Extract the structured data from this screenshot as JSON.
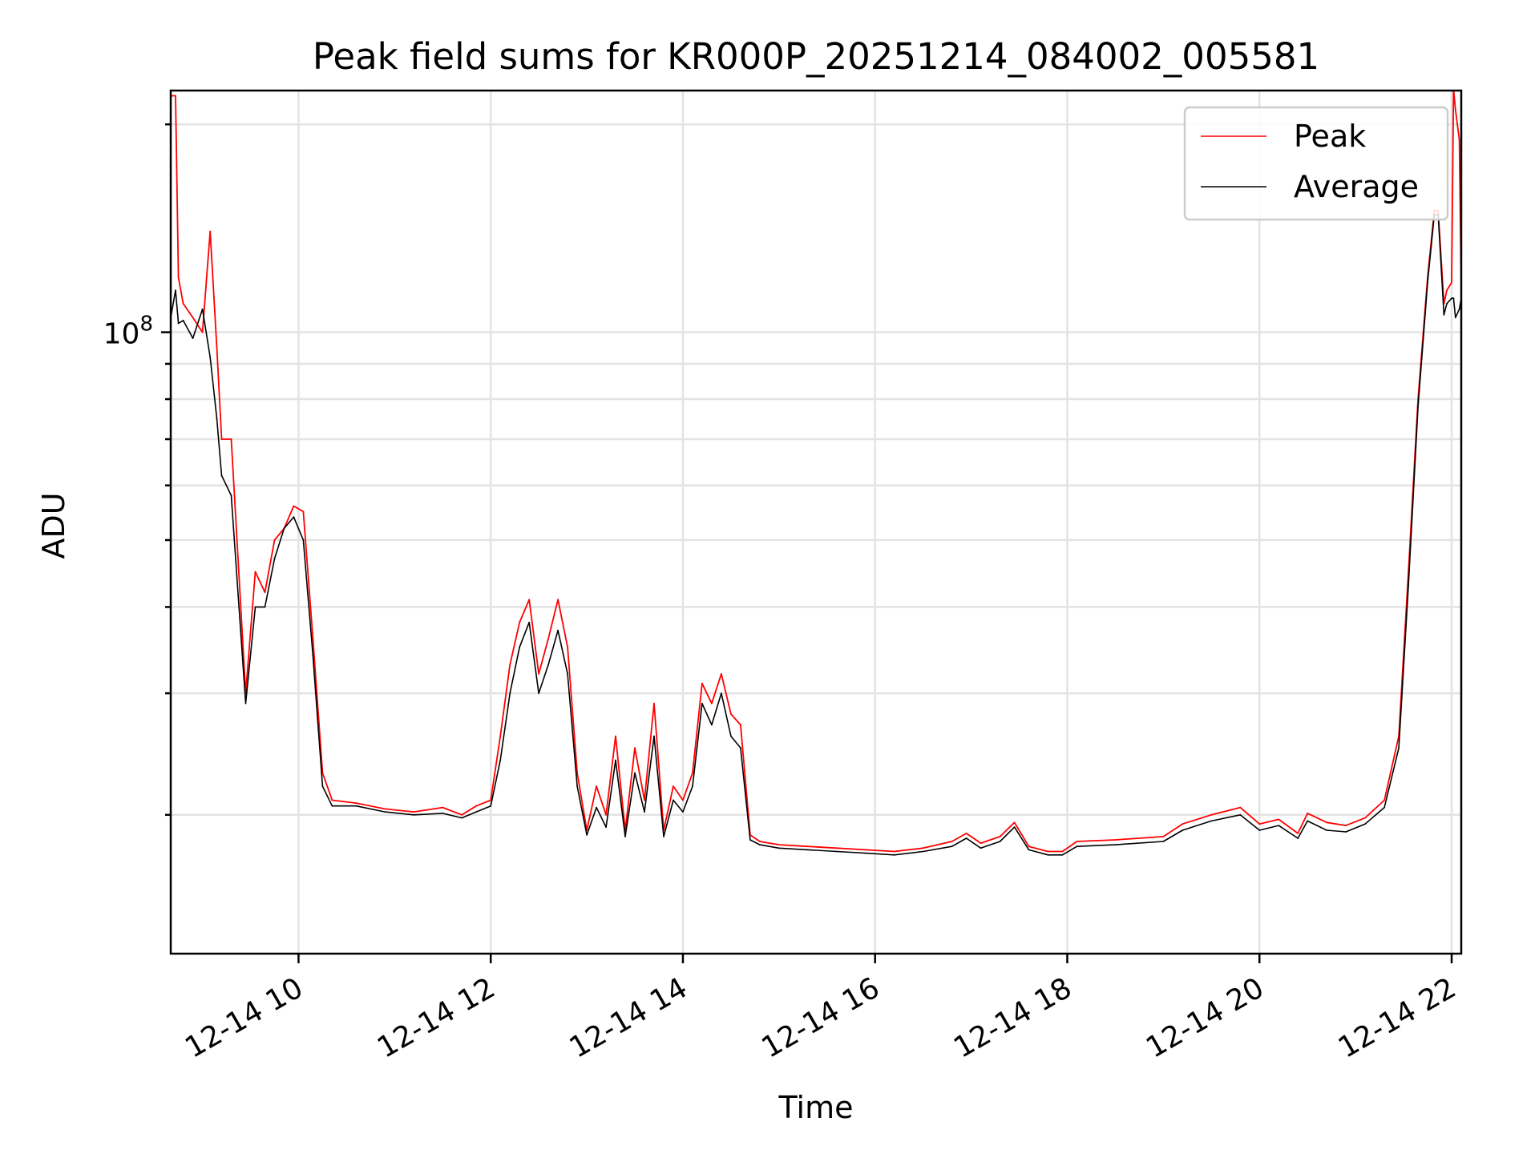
{
  "chart_data": {
    "type": "line",
    "title": "Peak field sums for KR000P_20251214_084002_005581",
    "xlabel": "Time",
    "ylabel": "ADU",
    "yscale": "log",
    "grid": true,
    "legend_position": "top-right",
    "x_unit": "hours since 2025-12-14 00:00",
    "xlim": [
      8.67,
      22.1
    ],
    "ylim_log10": [
      7.1,
      8.35
    ],
    "x_ticks": [
      {
        "value": 10,
        "label": "12-14 10"
      },
      {
        "value": 12,
        "label": "12-14 12"
      },
      {
        "value": 14,
        "label": "12-14 14"
      },
      {
        "value": 16,
        "label": "12-14 16"
      },
      {
        "value": 18,
        "label": "12-14 18"
      },
      {
        "value": 20,
        "label": "12-14 20"
      },
      {
        "value": 22,
        "label": "12-14 22"
      }
    ],
    "y_major_ticks": [
      {
        "value": 100000000,
        "base": "10",
        "exponent": "8"
      }
    ],
    "y_minor_ticks": [
      20000000,
      30000000,
      40000000,
      50000000,
      60000000,
      70000000,
      80000000,
      90000000,
      200000000
    ],
    "series": [
      {
        "name": "Peak",
        "color": "#ff0000",
        "x": [
          8.67,
          8.72,
          8.75,
          8.8,
          8.9,
          9.0,
          9.08,
          9.15,
          9.2,
          9.3,
          9.45,
          9.55,
          9.65,
          9.75,
          9.85,
          9.95,
          10.05,
          10.15,
          10.25,
          10.35,
          10.6,
          10.9,
          11.2,
          11.5,
          11.7,
          11.85,
          12.0,
          12.1,
          12.2,
          12.3,
          12.4,
          12.5,
          12.6,
          12.7,
          12.8,
          12.9,
          13.0,
          13.1,
          13.2,
          13.3,
          13.4,
          13.5,
          13.6,
          13.7,
          13.8,
          13.9,
          14.0,
          14.1,
          14.2,
          14.3,
          14.4,
          14.5,
          14.6,
          14.7,
          14.8,
          15.0,
          15.3,
          15.6,
          15.9,
          16.2,
          16.5,
          16.8,
          16.95,
          17.1,
          17.3,
          17.45,
          17.6,
          17.8,
          17.95,
          18.1,
          18.5,
          19.0,
          19.2,
          19.5,
          19.8,
          20.0,
          20.2,
          20.4,
          20.5,
          20.7,
          20.9,
          21.1,
          21.3,
          21.45,
          21.55,
          21.65,
          21.75,
          21.82,
          21.86,
          21.92,
          21.95,
          22.0,
          22.02,
          22.04,
          22.08,
          22.1
        ],
        "values": [
          220000000,
          220000000,
          120000000,
          110000000,
          105000000,
          100000000,
          140000000,
          95000000,
          70000000,
          70000000,
          30000000,
          45000000,
          42000000,
          50000000,
          52000000,
          56000000,
          55000000,
          36000000,
          23000000,
          21000000,
          20800000,
          20400000,
          20200000,
          20500000,
          20000000,
          20600000,
          21000000,
          26000000,
          33000000,
          38000000,
          41000000,
          32000000,
          36000000,
          41000000,
          35000000,
          23000000,
          19000000,
          22000000,
          20000000,
          26000000,
          19000000,
          25000000,
          21000000,
          29000000,
          19000000,
          22000000,
          21000000,
          23000000,
          31000000,
          29000000,
          32000000,
          28000000,
          27000000,
          18700000,
          18300000,
          18100000,
          18000000,
          17900000,
          17800000,
          17700000,
          17900000,
          18300000,
          18800000,
          18200000,
          18600000,
          19500000,
          18000000,
          17700000,
          17700000,
          18300000,
          18400000,
          18600000,
          19400000,
          20000000,
          20500000,
          19400000,
          19700000,
          18800000,
          20100000,
          19500000,
          19300000,
          19800000,
          21000000,
          26000000,
          45000000,
          80000000,
          120000000,
          150000000,
          150000000,
          110000000,
          115000000,
          118000000,
          225000000,
          210000000,
          190000000,
          115000000
        ]
      },
      {
        "name": "Average",
        "color": "#000000",
        "x": [
          8.67,
          8.72,
          8.75,
          8.8,
          8.9,
          9.0,
          9.08,
          9.15,
          9.2,
          9.3,
          9.45,
          9.55,
          9.65,
          9.75,
          9.85,
          9.95,
          10.05,
          10.15,
          10.25,
          10.35,
          10.6,
          10.9,
          11.2,
          11.5,
          11.7,
          11.85,
          12.0,
          12.1,
          12.2,
          12.3,
          12.4,
          12.5,
          12.6,
          12.7,
          12.8,
          12.9,
          13.0,
          13.1,
          13.2,
          13.3,
          13.4,
          13.5,
          13.6,
          13.7,
          13.8,
          13.9,
          14.0,
          14.1,
          14.2,
          14.3,
          14.4,
          14.5,
          14.6,
          14.7,
          14.8,
          15.0,
          15.3,
          15.6,
          15.9,
          16.2,
          16.5,
          16.8,
          16.95,
          17.1,
          17.3,
          17.45,
          17.6,
          17.8,
          17.95,
          18.1,
          18.5,
          19.0,
          19.2,
          19.5,
          19.8,
          20.0,
          20.2,
          20.4,
          20.5,
          20.7,
          20.9,
          21.1,
          21.3,
          21.45,
          21.55,
          21.65,
          21.75,
          21.82,
          21.86,
          21.92,
          21.95,
          22.0,
          22.02,
          22.04,
          22.08,
          22.1
        ],
        "values": [
          105000000,
          115000000,
          103000000,
          104000000,
          98000000,
          108000000,
          92000000,
          75000000,
          62000000,
          58000000,
          29000000,
          40000000,
          40000000,
          47000000,
          52000000,
          54000000,
          50000000,
          34000000,
          22000000,
          20600000,
          20600000,
          20200000,
          20000000,
          20100000,
          19800000,
          20200000,
          20600000,
          24000000,
          30000000,
          35000000,
          38000000,
          30000000,
          33000000,
          37000000,
          32000000,
          22000000,
          18700000,
          20500000,
          19200000,
          24000000,
          18600000,
          23000000,
          20200000,
          26000000,
          18600000,
          21000000,
          20200000,
          22000000,
          29000000,
          27000000,
          30000000,
          26000000,
          25000000,
          18400000,
          18100000,
          17900000,
          17800000,
          17700000,
          17600000,
          17500000,
          17700000,
          18000000,
          18500000,
          17900000,
          18300000,
          19200000,
          17800000,
          17500000,
          17500000,
          18000000,
          18100000,
          18300000,
          19000000,
          19600000,
          20000000,
          19000000,
          19300000,
          18500000,
          19600000,
          19000000,
          18900000,
          19400000,
          20500000,
          25000000,
          43000000,
          78000000,
          118000000,
          148000000,
          148000000,
          106000000,
          110000000,
          112000000,
          112000000,
          105000000,
          108000000,
          112000000
        ]
      }
    ]
  }
}
